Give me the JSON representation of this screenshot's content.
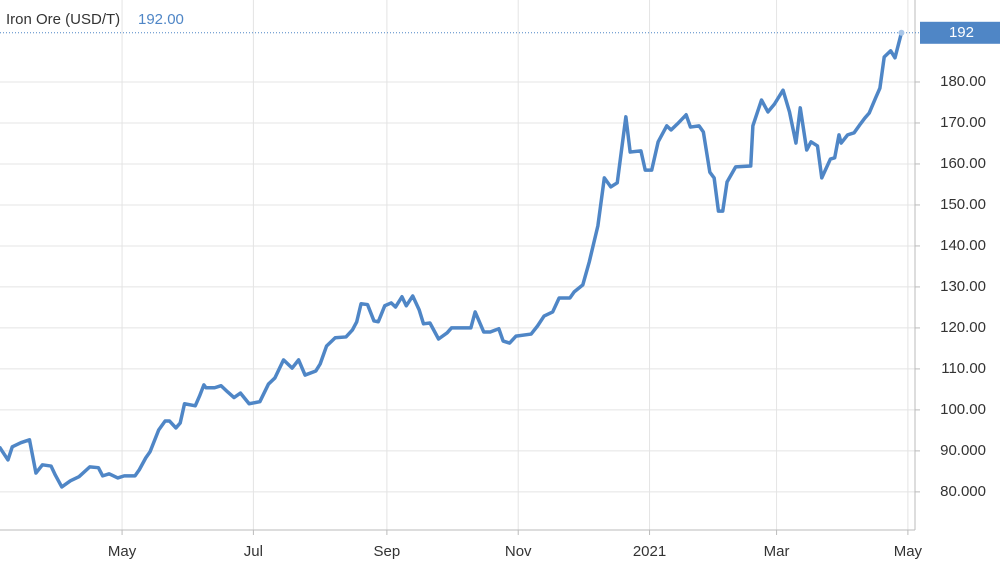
{
  "chart_data": {
    "type": "line",
    "title": "Iron Ore (USD/T)",
    "subtitle": "192.00",
    "color": "#4f86c6",
    "grid": true,
    "xlim": [
      64.3,
      489.3
    ],
    "ylim": [
      70.7,
      200
    ],
    "xticks": [
      {
        "value": 121,
        "label": "May"
      },
      {
        "value": 182,
        "label": "Jul"
      },
      {
        "value": 244,
        "label": "Sep"
      },
      {
        "value": 305,
        "label": "Nov"
      },
      {
        "value": 366,
        "label": "2021"
      },
      {
        "value": 425,
        "label": "Mar"
      },
      {
        "value": 486,
        "label": "May"
      }
    ],
    "yticks": [
      {
        "value": 80,
        "label": "80.000"
      },
      {
        "value": 90,
        "label": "90.000"
      },
      {
        "value": 100,
        "label": "100.00"
      },
      {
        "value": 110,
        "label": "110.00"
      },
      {
        "value": 120,
        "label": "120.00"
      },
      {
        "value": 130,
        "label": "130.00"
      },
      {
        "value": 140,
        "label": "140.00"
      },
      {
        "value": 150,
        "label": "150.00"
      },
      {
        "value": 160,
        "label": "160.00"
      },
      {
        "value": 170,
        "label": "170.00"
      },
      {
        "value": 180,
        "label": "180.00"
      }
    ],
    "x": [
      64,
      68,
      70,
      74,
      78,
      81,
      84,
      88,
      90,
      93,
      97,
      101,
      106,
      110,
      112,
      115,
      119,
      122,
      127,
      129,
      132,
      134,
      138,
      141,
      143,
      146,
      148,
      150,
      155,
      157,
      159,
      160,
      164,
      167,
      170,
      173,
      176,
      180,
      185,
      189,
      192,
      196,
      200,
      203,
      206,
      211,
      213,
      216,
      218,
      220,
      225,
      228,
      230,
      232,
      235,
      238,
      240,
      243,
      246,
      248,
      251,
      253,
      256,
      259,
      261,
      264,
      268,
      272,
      274,
      283,
      285,
      289,
      292,
      296,
      298,
      301,
      304,
      311,
      314,
      317,
      321,
      324,
      329,
      331,
      335,
      338,
      342,
      345,
      348,
      351,
      355,
      357,
      362,
      364,
      367,
      370,
      374,
      376,
      379,
      383,
      385,
      389,
      391,
      394,
      396,
      398,
      400,
      402,
      406,
      413,
      414,
      418,
      421,
      424,
      428,
      431,
      434,
      436,
      439,
      441,
      444,
      446,
      450,
      452,
      454,
      455,
      458,
      461,
      464,
      466,
      468,
      471,
      473,
      475,
      478,
      480,
      483
    ],
    "values": [
      91,
      87.8,
      91,
      92,
      92.7,
      84.6,
      86.6,
      86.3,
      84.1,
      81.2,
      82.7,
      83.7,
      86.1,
      85.9,
      83.9,
      84.4,
      83.4,
      83.9,
      83.9,
      85.4,
      88.3,
      89.8,
      95.1,
      97.3,
      97.3,
      95.6,
      96.8,
      101.5,
      101,
      103.4,
      106.1,
      105.4,
      105.4,
      105.9,
      104.4,
      103,
      104.1,
      101.5,
      102,
      106.3,
      107.8,
      112.2,
      110.2,
      112.2,
      108.5,
      109.5,
      111.2,
      115.6,
      116.6,
      117.6,
      117.8,
      119.5,
      121.5,
      125.9,
      125.7,
      121.7,
      121.5,
      125.4,
      126.1,
      125.1,
      127.6,
      125.4,
      127.8,
      124.4,
      121,
      121.2,
      117.3,
      118.8,
      120,
      120,
      123.9,
      119,
      119,
      119.8,
      116.8,
      116.3,
      118,
      118.5,
      120.5,
      122.9,
      123.9,
      127.3,
      127.3,
      128.8,
      130.5,
      136.1,
      144.9,
      156.6,
      154.4,
      155.4,
      171.5,
      162.9,
      163.2,
      158.5,
      158.5,
      165.4,
      169.3,
      168.3,
      169.8,
      172,
      169,
      169.3,
      167.8,
      158,
      156.6,
      148.5,
      148.5,
      155.6,
      159.3,
      159.5,
      169.3,
      175.6,
      172.7,
      174.6,
      178,
      172.7,
      165.1,
      173.7,
      163.4,
      165.4,
      164.4,
      156.6,
      161.2,
      161.5,
      167.1,
      165.1,
      167.1,
      167.6,
      169.8,
      171.2,
      172.4,
      176.1,
      178.5,
      186.1,
      187.6,
      185.9,
      192
    ]
  }
}
